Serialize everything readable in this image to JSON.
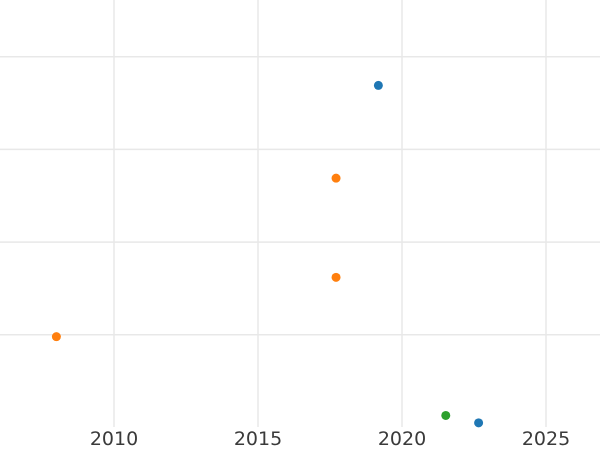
{
  "chart_data": {
    "type": "scatter",
    "title": "",
    "xlabel": "",
    "ylabel": "",
    "x_tick_labels": [
      "2010",
      "2015",
      "2020",
      "2025"
    ],
    "x_tick_values": [
      2010,
      2015,
      2020,
      2025
    ],
    "x_visible_range": [
      2006.0,
      2026.9
    ],
    "y_axis_labeled": false,
    "y_unit": "unlabeled-gridline-index (bottom visible gridline = 0)",
    "y_gridline_units": [
      0,
      1,
      2,
      3
    ],
    "grid": true,
    "legend": false,
    "series": [
      {
        "name": "blue-series",
        "color": "#1f77b4",
        "points": [
          {
            "x": 2019.18,
            "y": 2.69
          },
          {
            "x": 2022.66,
            "y": -0.95
          }
        ]
      },
      {
        "name": "orange-series",
        "color": "#ff7f0e",
        "points": [
          {
            "x": 2017.71,
            "y": 1.69
          },
          {
            "x": 2017.71,
            "y": 0.62
          },
          {
            "x": 2008.0,
            "y": -0.02
          }
        ]
      },
      {
        "name": "green-series",
        "color": "#2ca02c",
        "points": [
          {
            "x": 2021.52,
            "y": -0.87
          }
        ]
      }
    ],
    "styles": {
      "background_color": "#ffffff",
      "grid_color": "#e8e8e8",
      "tick_label_color": "#3a3a3a",
      "marker_diameter_px": 9
    }
  }
}
